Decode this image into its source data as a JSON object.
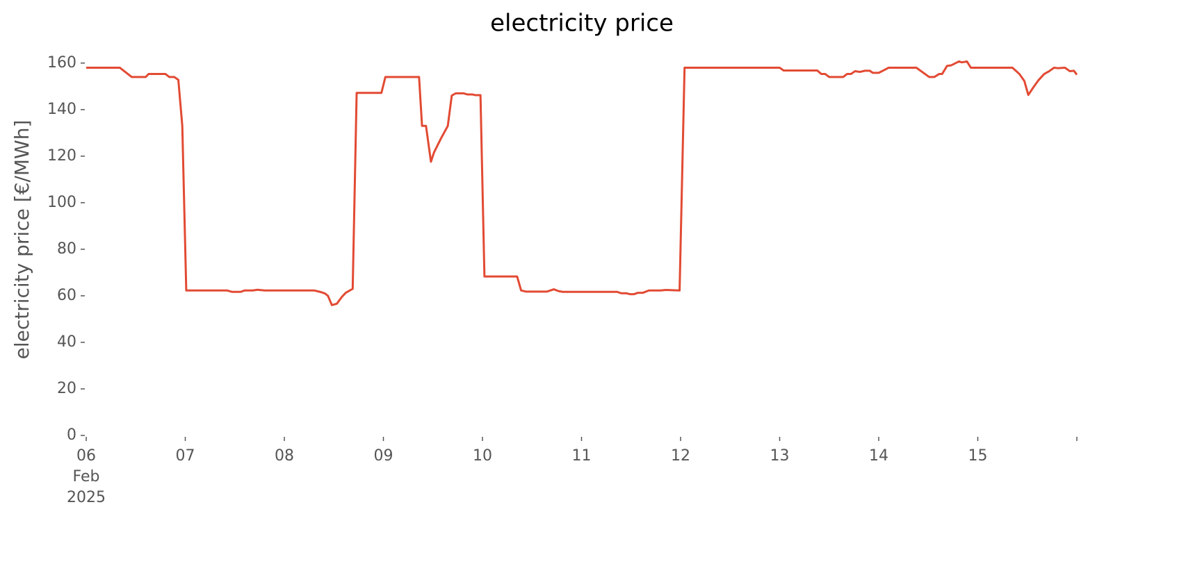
{
  "chart_data": {
    "type": "line",
    "title": "electricity price",
    "y_label": "electricity price [€/MWh]",
    "color": "#E24A33",
    "x": [
      6.0,
      6.34,
      6.46,
      6.6,
      6.63,
      6.8,
      6.84,
      6.89,
      6.93,
      6.97,
      7.01,
      7.42,
      7.47,
      7.56,
      7.6,
      7.68,
      7.73,
      7.8,
      8.3,
      8.36,
      8.41,
      8.44,
      8.48,
      8.53,
      8.58,
      8.62,
      8.69,
      8.73,
      8.98,
      9.02,
      9.36,
      9.39,
      9.43,
      9.48,
      9.51,
      9.58,
      9.65,
      9.69,
      9.73,
      9.81,
      9.85,
      9.9,
      9.93,
      9.98,
      10.02,
      10.35,
      10.39,
      10.44,
      10.65,
      10.72,
      10.77,
      10.81,
      11.36,
      11.4,
      11.45,
      11.49,
      11.53,
      11.57,
      11.62,
      11.68,
      11.8,
      11.85,
      11.99,
      12.04,
      13.0,
      13.04,
      13.38,
      13.42,
      13.46,
      13.5,
      13.64,
      13.68,
      13.72,
      13.76,
      13.81,
      13.86,
      13.91,
      13.94,
      14.0,
      14.1,
      14.38,
      14.51,
      14.56,
      14.61,
      14.64,
      14.69,
      14.73,
      14.81,
      14.84,
      14.89,
      14.93,
      15.35,
      15.42,
      15.47,
      15.51,
      15.56,
      15.61,
      15.67,
      15.72,
      15.77,
      15.81,
      15.88,
      15.93,
      15.97,
      16.0
    ],
    "values": [
      158,
      158,
      154,
      154,
      155.3,
      155.3,
      154,
      154,
      152.8,
      133,
      62.3,
      62.3,
      61.7,
      61.7,
      62.3,
      62.3,
      62.6,
      62.3,
      62.3,
      61.7,
      61,
      60,
      56,
      56.6,
      59.5,
      61.3,
      63,
      147.2,
      147.2,
      154,
      154,
      133,
      133,
      117.6,
      121.5,
      127.5,
      133,
      146,
      147,
      147,
      146.5,
      146.5,
      146.2,
      146.2,
      68.3,
      68.3,
      62.3,
      61.8,
      61.8,
      62.8,
      62,
      61.7,
      61.7,
      61.1,
      61.1,
      60.7,
      60.7,
      61.3,
      61.3,
      62.3,
      62.3,
      62.5,
      62.3,
      158,
      158,
      156.8,
      156.8,
      155.3,
      155.3,
      154,
      154,
      155.3,
      155.3,
      156.5,
      156.2,
      156.7,
      156.7,
      155.8,
      155.8,
      158,
      158,
      154,
      154,
      155.3,
      155.3,
      158.8,
      159,
      160.7,
      160.3,
      160.7,
      158,
      158,
      155.3,
      152.3,
      146.3,
      149.5,
      152.5,
      155.3,
      156.5,
      158,
      157.8,
      158,
      156.5,
      156.7,
      155
    ],
    "xlim": [
      6,
      16
    ],
    "xticks": [
      {
        "value": 6,
        "label": "06\nFeb\n2025"
      },
      {
        "value": 7,
        "label": "07"
      },
      {
        "value": 8,
        "label": "08"
      },
      {
        "value": 9,
        "label": "09"
      },
      {
        "value": 10,
        "label": "10"
      },
      {
        "value": 11,
        "label": "11"
      },
      {
        "value": 12,
        "label": "12"
      },
      {
        "value": 13,
        "label": "13"
      },
      {
        "value": 14,
        "label": "14"
      },
      {
        "value": 15,
        "label": "15"
      },
      {
        "value": 16,
        "label": ""
      }
    ],
    "ylim": [
      0,
      168
    ],
    "yticks": [
      0,
      20,
      40,
      60,
      80,
      100,
      120,
      140,
      160
    ],
    "grid": false
  }
}
